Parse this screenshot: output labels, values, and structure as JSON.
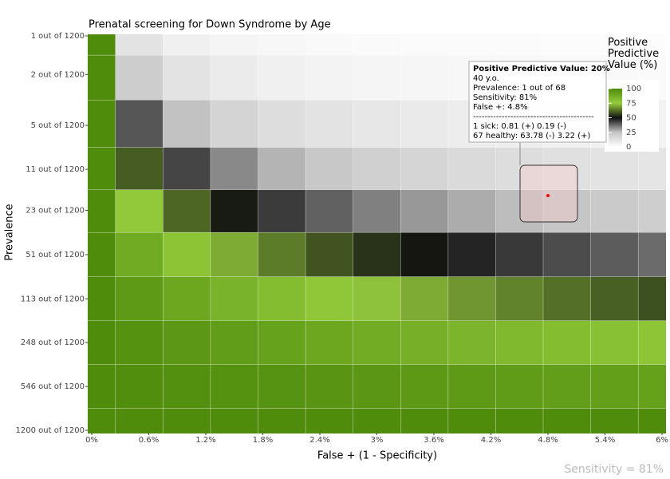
{
  "chart_data": {
    "type": "heatmap",
    "title": "Prenatal screening for Down Syndrome by Age",
    "x_label": "False + (1 - Specificity)",
    "y_label": "Prevalence",
    "footnote": "Sensitivity = 81%",
    "x": [
      0,
      0.5,
      1,
      1.5,
      2,
      2.5,
      3,
      3.5,
      4,
      4.5,
      5,
      5.5,
      6
    ],
    "y": [
      1,
      2,
      5,
      11,
      23,
      51,
      113,
      248,
      546,
      1200
    ],
    "values": [
      [
        100,
        11.9,
        6.3,
        4.3,
        3.3,
        2.6,
        2.2,
        1.9,
        1.7,
        1.5,
        1.3,
        1.2,
        1.1
      ],
      [
        100,
        21.3,
        11.9,
        8.3,
        6.3,
        5.1,
        4.3,
        3.7,
        3.3,
        2.9,
        2.6,
        2.4,
        2.2
      ],
      [
        100,
        40.4,
        25.3,
        18.4,
        14.5,
        11.9,
        10.2,
        8.8,
        7.8,
        7.0,
        6.3,
        5.8,
        5.3
      ],
      [
        100,
        60.0,
        42.8,
        33.3,
        27.3,
        23.1,
        20.0,
        17.6,
        15.8,
        14.3,
        13.0,
        12.0,
        11.1
      ],
      [
        100,
        76.0,
        61.3,
        51.3,
        44.2,
        38.8,
        34.5,
        31.1,
        28.4,
        26.0,
        24.0,
        22.3,
        20.9
      ],
      [
        100,
        87.8,
        78.2,
        70.6,
        64.3,
        59.0,
        54.5,
        50.7,
        47.3,
        44.4,
        41.8,
        39.5,
        37.5
      ],
      [
        100,
        94.4,
        89.4,
        84.9,
        80.8,
        77.1,
        73.7,
        70.6,
        67.8,
        65.2,
        62.7,
        60.5,
        58.4
      ],
      [
        100,
        97.7,
        95.5,
        93.4,
        91.3,
        89.4,
        87.6,
        85.8,
        84.1,
        82.4,
        80.8,
        79.3,
        77.9
      ],
      [
        100,
        99.3,
        98.5,
        97.8,
        97.1,
        96.4,
        95.8,
        95.1,
        94.4,
        93.8,
        93.1,
        92.5,
        91.8
      ],
      [
        100,
        100,
        100,
        100,
        100,
        100,
        100,
        100,
        100,
        100,
        100,
        100,
        100
      ]
    ],
    "xlim": [
      0,
      6
    ],
    "xticks": [
      {
        "value": 0,
        "label": "0%"
      },
      {
        "value": 0.6,
        "label": "0.6%"
      },
      {
        "value": 1.2,
        "label": "1.2%"
      },
      {
        "value": 1.8,
        "label": "1.8%"
      },
      {
        "value": 2.4,
        "label": "2.4%"
      },
      {
        "value": 3,
        "label": "3%"
      },
      {
        "value": 3.6,
        "label": "3.6%"
      },
      {
        "value": 4.2,
        "label": "4.2%"
      },
      {
        "value": 4.8,
        "label": "4.8%"
      },
      {
        "value": 5.4,
        "label": "5.4%"
      },
      {
        "value": 6,
        "label": "6%"
      }
    ],
    "ylim": [
      1,
      1200
    ],
    "y_log": true,
    "yticks": [
      {
        "value": 1,
        "label": "1 out of 1200"
      },
      {
        "value": 2,
        "label": "2 out of 1200"
      },
      {
        "value": 5,
        "label": "5 out of 1200"
      },
      {
        "value": 11,
        "label": "11 out of 1200"
      },
      {
        "value": 23,
        "label": "23 out of 1200"
      },
      {
        "value": 51,
        "label": "51 out of 1200"
      },
      {
        "value": 113,
        "label": "113 out of 1200"
      },
      {
        "value": 248,
        "label": "248 out of 1200"
      },
      {
        "value": 546,
        "label": "546 out of 1200"
      },
      {
        "value": 1200,
        "label": "1200 out of 1200"
      }
    ],
    "grid": true,
    "colorscale": {
      "title": "Positive Predictive Value (%)",
      "stops": [
        {
          "value": 0,
          "color": "#ffffff"
        },
        {
          "value": 25,
          "color": "#c4c4c4"
        },
        {
          "value": 50,
          "color": "#111111"
        },
        {
          "value": 75,
          "color": "#95cc3c"
        },
        {
          "value": 100,
          "color": "#4f8c0c"
        }
      ],
      "ticks": [
        0,
        25,
        50,
        75,
        100
      ]
    },
    "highlight": {
      "x": 4.8,
      "y": 17.65,
      "color": "#ff0000"
    },
    "annotation": {
      "lines": [
        "Positive Predictive Value: 20%",
        "40 y.o.",
        "Prevalence: 1 out of 68",
        "Sensitivity: 81%",
        "False +: 4.8%",
        "------------------------------------------",
        "1 sick: 0.81 (+) 0.19 (-)",
        "67 healthy: 63.78 (-) 3.22 (+)"
      ]
    }
  }
}
